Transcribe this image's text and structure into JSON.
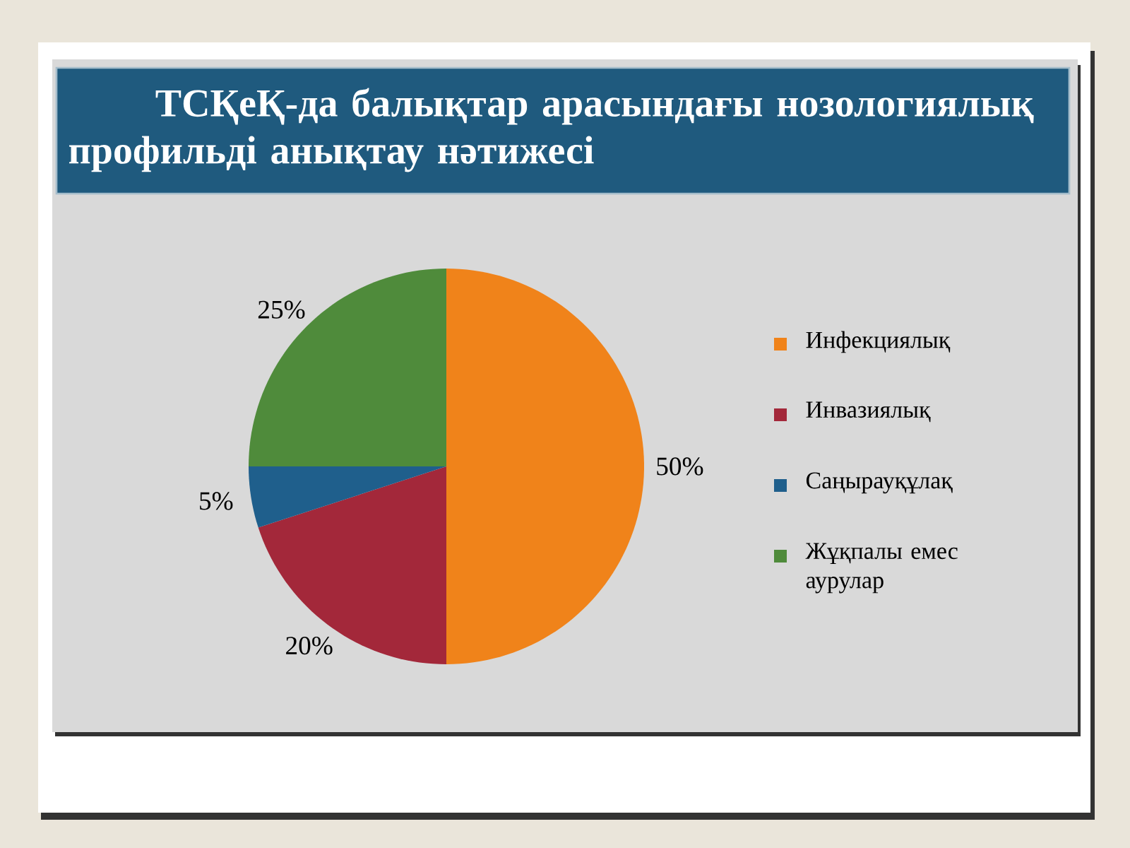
{
  "chart_data": {
    "type": "pie",
    "title": "ТСҚеҚ-да балықтар арасындағы нозологиялық профильді анықтау нәтижесі",
    "categories": [
      "Инфекциялық",
      "Инвазиялық",
      "Саңырауқұлақ",
      "Жұқпалы емес аурулар"
    ],
    "values": [
      50,
      20,
      5,
      25
    ],
    "colors": [
      "#f0831a",
      "#a3283a",
      "#1f5f8c",
      "#4f8b3b"
    ],
    "value_labels": [
      "50%",
      "20%",
      "5%",
      "25%"
    ],
    "legend": "right"
  }
}
